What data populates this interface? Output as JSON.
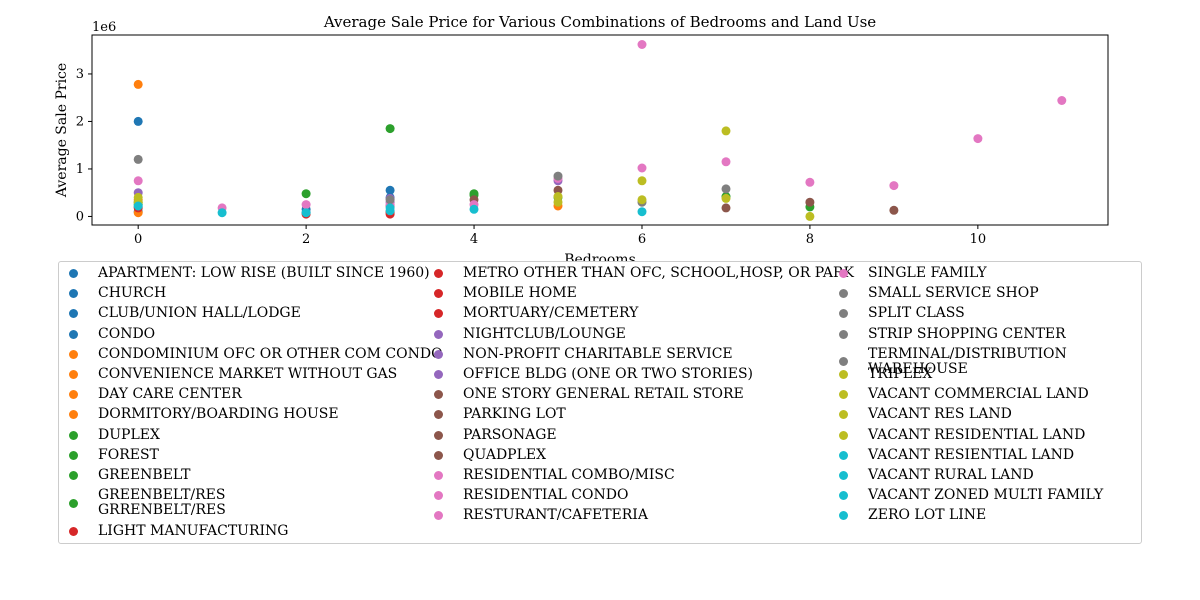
{
  "chart_data": {
    "type": "scatter",
    "title": "Average Sale Price for Various Combinations of Bedrooms and Land Use",
    "xlabel": "Bedrooms",
    "ylabel": "Average Sale Price",
    "y_offset_label": "1e6",
    "xlim": [
      -0.55,
      11.55
    ],
    "ylim": [
      -0.18,
      3.82
    ],
    "x_ticks": [
      0,
      2,
      4,
      6,
      8,
      10
    ],
    "x_tick_labels": [
      "0",
      "2",
      "4",
      "6",
      "8",
      "10"
    ],
    "y_ticks": [
      0,
      1,
      2,
      3
    ],
    "y_tick_labels": [
      "0",
      "1",
      "2",
      "3"
    ],
    "grid": false,
    "legend_position": "below",
    "series": [
      {
        "name": "APARTMENT: LOW RISE (BUILT SINCE 1960)",
        "color": "#1f77b4",
        "x": [
          0,
          3
        ],
        "y": [
          2.0,
          0.55
        ]
      },
      {
        "name": "CHURCH",
        "color": "#1f77b4",
        "x": [
          0
        ],
        "y": [
          0.2
        ]
      },
      {
        "name": "CLUB/UNION HALL/LODGE",
        "color": "#1f77b4",
        "x": [
          0,
          2
        ],
        "y": [
          0.1,
          0.08
        ]
      },
      {
        "name": "CONDO",
        "color": "#1f77b4",
        "x": [
          2,
          3
        ],
        "y": [
          0.15,
          0.4
        ]
      },
      {
        "name": "CONDOMINIUM OFC  OR OTHER COM CONDO",
        "color": "#ff7f0e",
        "x": [
          0
        ],
        "y": [
          2.78
        ]
      },
      {
        "name": "CONVENIENCE MARKET WITHOUT GAS",
        "color": "#ff7f0e",
        "x": [
          0
        ],
        "y": [
          0.08
        ]
      },
      {
        "name": "DAY CARE CENTER",
        "color": "#ff7f0e",
        "x": [
          5
        ],
        "y": [
          0.22
        ]
      },
      {
        "name": "DORMITORY/BOARDING HOUSE",
        "color": "#ff7f0e",
        "x": [
          0
        ],
        "y": [
          0.35
        ]
      },
      {
        "name": "DUPLEX",
        "color": "#2ca02c",
        "x": [
          2,
          4,
          7
        ],
        "y": [
          0.48,
          0.48,
          0.42
        ]
      },
      {
        "name": "FOREST",
        "color": "#2ca02c",
        "x": [
          3,
          8
        ],
        "y": [
          1.85,
          0.2
        ]
      },
      {
        "name": "GREENBELT",
        "color": "#2ca02c",
        "x": [
          0,
          4
        ],
        "y": [
          0.3,
          0.45
        ]
      },
      {
        "name": "GREENBELT/RES\nGRRENBELT/RES",
        "color": "#2ca02c",
        "x": [
          0,
          5
        ],
        "y": [
          0.25,
          0.4
        ]
      },
      {
        "name": "LIGHT MANUFACTURING",
        "color": "#d62728",
        "x": [
          3
        ],
        "y": [
          0.05
        ]
      },
      {
        "name": "METRO OTHER THAN OFC, SCHOOL,HOSP, OR PARK",
        "color": "#d62728",
        "x": [
          3
        ],
        "y": [
          0.1
        ]
      },
      {
        "name": "MOBILE HOME",
        "color": "#d62728",
        "x": [
          2,
          3
        ],
        "y": [
          0.05,
          0.08
        ]
      },
      {
        "name": "MORTUARY/CEMETERY",
        "color": "#d62728",
        "x": [
          0
        ],
        "y": [
          0.18
        ]
      },
      {
        "name": "NIGHTCLUB/LOUNGE",
        "color": "#9467bd",
        "x": [
          0,
          3
        ],
        "y": [
          0.5,
          0.38
        ]
      },
      {
        "name": "NON-PROFIT CHARITABLE SERVICE",
        "color": "#9467bd",
        "x": [
          3
        ],
        "y": [
          0.3
        ]
      },
      {
        "name": "OFFICE BLDG (ONE OR TWO STORIES)",
        "color": "#9467bd",
        "x": [
          5
        ],
        "y": [
          0.75
        ]
      },
      {
        "name": "ONE STORY GENERAL RETAIL STORE",
        "color": "#8c564b",
        "x": [
          3
        ],
        "y": [
          0.22
        ]
      },
      {
        "name": "PARKING LOT",
        "color": "#8c564b",
        "x": [
          5
        ],
        "y": [
          0.55
        ]
      },
      {
        "name": "PARSONAGE",
        "color": "#8c564b",
        "x": [
          4
        ],
        "y": [
          0.35
        ]
      },
      {
        "name": "QUADPLEX",
        "color": "#8c564b",
        "x": [
          7,
          8,
          9
        ],
        "y": [
          0.18,
          0.3,
          0.13
        ]
      },
      {
        "name": "RESIDENTIAL COMBO/MISC",
        "color": "#e377c2",
        "x": [
          0,
          1,
          2,
          3
        ],
        "y": [
          0.75,
          0.18,
          0.25,
          0.25
        ]
      },
      {
        "name": "RESIDENTIAL CONDO",
        "color": "#e377c2",
        "x": [
          4,
          5,
          6,
          7
        ],
        "y": [
          0.25,
          0.8,
          1.02,
          1.15
        ]
      },
      {
        "name": "RESTURANT/CAFETERIA",
        "color": "#e377c2",
        "x": [
          6
        ],
        "y": [
          3.62
        ]
      },
      {
        "name": "SINGLE FAMILY",
        "color": "#e377c2",
        "x": [
          8,
          9,
          10,
          11
        ],
        "y": [
          0.72,
          0.65,
          1.64,
          2.44
        ]
      },
      {
        "name": "SMALL SERVICE SHOP",
        "color": "#7f7f7f",
        "x": [
          0
        ],
        "y": [
          1.2
        ]
      },
      {
        "name": "SPLIT CLASS",
        "color": "#7f7f7f",
        "x": [
          5
        ],
        "y": [
          0.85
        ]
      },
      {
        "name": "STRIP SHOPPING CENTER",
        "color": "#7f7f7f",
        "x": [
          7
        ],
        "y": [
          0.58
        ]
      },
      {
        "name": "TERMINAL/DISTRIBUTION WAREHOUSE",
        "color": "#7f7f7f",
        "x": [
          3,
          6
        ],
        "y": [
          0.35,
          0.3
        ]
      },
      {
        "name": "TRIPLEX",
        "color": "#bcbd22",
        "x": [
          6,
          7,
          8
        ],
        "y": [
          0.75,
          0.38,
          0.0
        ]
      },
      {
        "name": "VACANT COMMERCIAL LAND",
        "color": "#bcbd22",
        "x": [
          7
        ],
        "y": [
          1.8
        ]
      },
      {
        "name": "VACANT RES LAND",
        "color": "#bcbd22",
        "x": [
          0,
          5
        ],
        "y": [
          0.3,
          0.3
        ]
      },
      {
        "name": "VACANT RESIDENTIAL LAND",
        "color": "#bcbd22",
        "x": [
          0,
          5,
          6
        ],
        "y": [
          0.4,
          0.42,
          0.35
        ]
      },
      {
        "name": "VACANT RESIENTIAL LAND",
        "color": "#17becf",
        "x": [
          2,
          3
        ],
        "y": [
          0.08,
          0.12
        ]
      },
      {
        "name": "VACANT RURAL LAND",
        "color": "#17becf",
        "x": [
          1,
          4
        ],
        "y": [
          0.08,
          0.15
        ]
      },
      {
        "name": "VACANT ZONED MULTI FAMILY",
        "color": "#17becf",
        "x": [
          6
        ],
        "y": [
          0.1
        ]
      },
      {
        "name": "ZERO LOT LINE",
        "color": "#17becf",
        "x": [
          0,
          3
        ],
        "y": [
          0.22,
          0.18
        ]
      }
    ]
  }
}
